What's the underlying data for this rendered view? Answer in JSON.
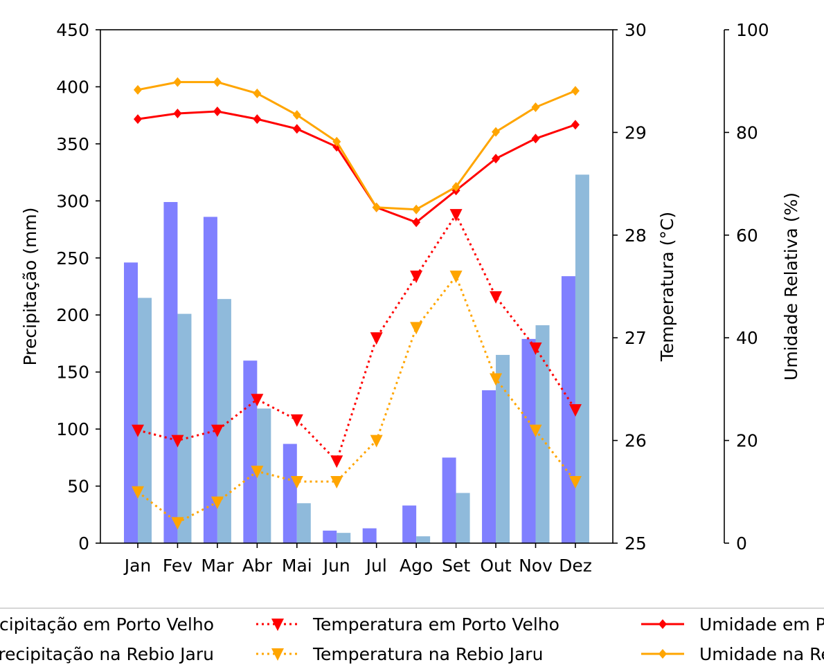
{
  "chart_data": {
    "type": "bar+line",
    "categories": [
      "Jan",
      "Fev",
      "Mar",
      "Abr",
      "Mai",
      "Jun",
      "Jul",
      "Ago",
      "Set",
      "Out",
      "Nov",
      "Dez"
    ],
    "axes": {
      "left": {
        "label": "Precipitação (mm)",
        "range": [
          0,
          450
        ],
        "ticks": [
          0,
          50,
          100,
          150,
          200,
          250,
          300,
          350,
          400,
          450
        ]
      },
      "right1": {
        "label": "Temperatura (°C)",
        "range": [
          25,
          30
        ],
        "ticks": [
          25,
          26,
          27,
          28,
          29,
          30
        ]
      },
      "right2": {
        "label": "Umidade Relativa (%)",
        "range": [
          0,
          100
        ],
        "ticks": [
          0,
          20,
          40,
          60,
          80,
          100
        ]
      }
    },
    "grid": false,
    "legend_placement": "bottom",
    "series": [
      {
        "name": "Precipitação em Porto Velho",
        "type": "bar",
        "axis": "left",
        "color": "#8080ff",
        "values": [
          246,
          299,
          286,
          160,
          87,
          11,
          13,
          33,
          75,
          134,
          179,
          234
        ]
      },
      {
        "name": "Precipitação na Rebio Jaru",
        "type": "bar",
        "axis": "left",
        "color": "#8fbadb",
        "values": [
          215,
          201,
          214,
          118,
          35,
          9,
          0,
          6,
          44,
          165,
          191,
          323
        ]
      },
      {
        "name": "Temperatura em Porto Velho",
        "type": "line",
        "style": "dotted",
        "marker": "triangle-down",
        "axis": "right1",
        "color": "#ff0000",
        "values": [
          26.1,
          26.0,
          26.1,
          26.4,
          26.2,
          25.8,
          27.0,
          27.6,
          28.2,
          27.4,
          26.9,
          26.3
        ]
      },
      {
        "name": "Temperatura na Rebio Jaru",
        "type": "line",
        "style": "dotted",
        "marker": "triangle-down",
        "axis": "right1",
        "color": "#ffa500",
        "values": [
          25.5,
          25.2,
          25.4,
          25.7,
          25.6,
          25.6,
          26.0,
          27.1,
          27.6,
          26.6,
          26.1,
          25.6
        ]
      },
      {
        "name": "Umidade em Porto Velho",
        "type": "line",
        "style": "solid",
        "marker": "diamond",
        "axis": "right2",
        "color": "#ff0000",
        "values": [
          82.6,
          83.7,
          84.1,
          82.6,
          80.7,
          77.2,
          65.4,
          62.5,
          68.7,
          74.9,
          78.8,
          81.5
        ]
      },
      {
        "name": "Umidade na Rebio Jaru",
        "type": "line",
        "style": "solid",
        "marker": "diamond",
        "axis": "right2",
        "color": "#ffa500",
        "values": [
          88.3,
          89.8,
          89.8,
          87.6,
          83.4,
          78.2,
          65.4,
          65.0,
          69.4,
          80.1,
          84.9,
          88.1
        ]
      }
    ]
  }
}
